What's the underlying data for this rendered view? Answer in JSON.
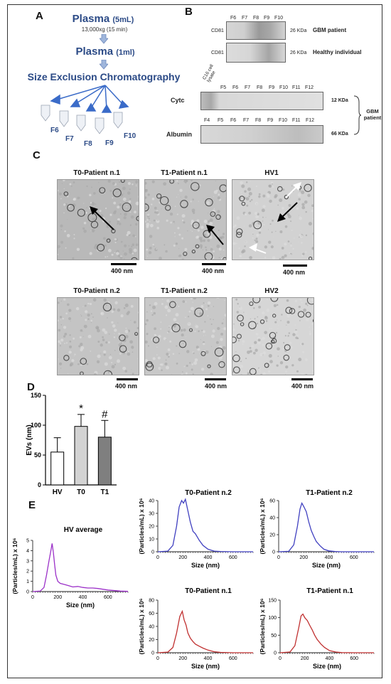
{
  "panels": {
    "a": "A",
    "b": "B",
    "c": "C",
    "d": "D",
    "e": "E"
  },
  "flow": {
    "plasma5_main": "Plasma",
    "plasma5_sub": "(5mL)",
    "spin": "13,000xg (15 min)",
    "plasma1_main": "Plasma",
    "plasma1_sub": "(1ml)",
    "sec": "Size Exclusion Chromatography",
    "fractions": [
      "F6",
      "F7",
      "F8",
      "F9",
      "F10"
    ]
  },
  "blot": {
    "cd81_lanes": [
      "F6",
      "F7",
      "F8",
      "F9",
      "F10"
    ],
    "cd81_row": "CD81",
    "kda26": "26 KDa",
    "gbm": "GBM patient",
    "healthy": "Healthy individual",
    "cytc_lanes": [
      "C16 cell lysate",
      "F5",
      "F6",
      "F7",
      "F8",
      "F9",
      "F10",
      "F11",
      "F12"
    ],
    "cytc": "Cytc",
    "kda12": "12 KDa",
    "alb_lanes": [
      "F4",
      "F5",
      "F6",
      "F7",
      "F8",
      "F9",
      "F10",
      "F11",
      "F12"
    ],
    "albumin": "Albumin",
    "kda66": "66 KDa",
    "gbm_side": "GBM patient"
  },
  "micro": {
    "titles": [
      "T0-Patient n.1",
      "T1-Patient n.1",
      "HV1",
      "T0-Patient n.2",
      "T1-Patient n.2",
      "HV2"
    ],
    "scale": "400 nm"
  },
  "chart_data": [
    {
      "type": "bar",
      "categories": [
        "HV",
        "T0",
        "T1"
      ],
      "values": [
        55,
        98,
        80
      ],
      "errors": [
        24,
        20,
        28
      ],
      "ylabel": "EVs (nm)",
      "ylim": [
        0,
        150
      ],
      "yticks": [
        0,
        50,
        100,
        150
      ],
      "annotations": {
        "T0": "*",
        "T1": "#"
      },
      "colors": [
        "#ffffff",
        "#d3d3d3",
        "#7f7f7f"
      ]
    },
    {
      "type": "line",
      "title": "HV average",
      "color": "#9b30c8",
      "xlabel": "Size (nm)",
      "ylabel": "(Particles/mL) x 10⁶",
      "xlim": [
        0,
        760
      ],
      "ylim": [
        0,
        5
      ],
      "xticks": [
        0,
        200,
        400,
        600
      ],
      "yticks": [
        0,
        1,
        2,
        3,
        4,
        5
      ],
      "x": [
        0,
        60,
        90,
        110,
        130,
        145,
        155,
        165,
        175,
        185,
        200,
        220,
        250,
        280,
        320,
        360,
        400,
        440,
        480,
        520,
        600,
        700,
        760
      ],
      "y": [
        0,
        0.05,
        0.4,
        1.6,
        3.0,
        4.0,
        4.7,
        3.8,
        2.6,
        1.6,
        1.0,
        0.8,
        0.7,
        0.6,
        0.45,
        0.5,
        0.4,
        0.35,
        0.35,
        0.3,
        0.15,
        0.05,
        0.02
      ]
    },
    {
      "type": "line",
      "title": "T0-Patient n.2",
      "color": "#4040c0",
      "xlabel": "Size (nm)",
      "ylabel": "(Particles/mL) x 10⁶",
      "xlim": [
        0,
        760
      ],
      "ylim": [
        0,
        40
      ],
      "xticks": [
        0,
        200,
        400,
        600
      ],
      "yticks": [
        0,
        10,
        20,
        30,
        40
      ],
      "x": [
        0,
        80,
        120,
        150,
        170,
        190,
        205,
        220,
        240,
        260,
        280,
        300,
        330,
        360,
        400,
        450,
        500,
        600,
        700,
        760
      ],
      "y": [
        0,
        0.5,
        5,
        20,
        35,
        40,
        38,
        41,
        32,
        23,
        16,
        14,
        9,
        5,
        2,
        0.5,
        0.2,
        0,
        0,
        0
      ]
    },
    {
      "type": "line",
      "title": "T1-Patient n.2",
      "color": "#4040c0",
      "xlabel": "Size (nm)",
      "ylabel": "(Particles/mL) x 10⁶",
      "xlim": [
        0,
        760
      ],
      "ylim": [
        0,
        60
      ],
      "xticks": [
        0,
        200,
        400,
        600
      ],
      "yticks": [
        0,
        20,
        40,
        60
      ],
      "x": [
        0,
        80,
        120,
        150,
        170,
        185,
        200,
        220,
        240,
        260,
        280,
        300,
        330,
        360,
        400,
        450,
        500,
        600,
        700,
        760
      ],
      "y": [
        0,
        0.5,
        8,
        30,
        50,
        57,
        53,
        47,
        35,
        25,
        18,
        12,
        7,
        3,
        1,
        0.3,
        0,
        0,
        0,
        0
      ]
    },
    {
      "type": "line",
      "title": "T0-Patient n.1",
      "color": "#c03030",
      "xlabel": "Size (nm)",
      "ylabel": "(Particles/mL) x 10⁶",
      "xlim": [
        0,
        760
      ],
      "ylim": [
        0,
        80
      ],
      "xticks": [
        0,
        200,
        400,
        600
      ],
      "yticks": [
        0,
        20,
        40,
        60,
        80
      ],
      "x": [
        0,
        80,
        120,
        150,
        175,
        195,
        210,
        225,
        240,
        260,
        280,
        300,
        330,
        360,
        400,
        450,
        500,
        600,
        700,
        760
      ],
      "y": [
        0,
        1,
        8,
        30,
        55,
        63,
        50,
        42,
        30,
        22,
        17,
        13,
        10,
        7,
        4,
        1.5,
        0.5,
        0,
        0,
        0
      ]
    },
    {
      "type": "line",
      "title": "T1-Patient n.1",
      "color": "#c03030",
      "xlabel": "Size (nm)",
      "ylabel": "(Particles/mL) x 10⁶",
      "xlim": [
        0,
        760
      ],
      "ylim": [
        0,
        150
      ],
      "xticks": [
        0,
        200,
        400,
        600
      ],
      "yticks": [
        0,
        50,
        100,
        150
      ],
      "x": [
        0,
        80,
        120,
        150,
        170,
        185,
        200,
        220,
        240,
        260,
        280,
        300,
        330,
        360,
        400,
        450,
        500,
        600,
        700,
        760
      ],
      "y": [
        0,
        2,
        20,
        70,
        105,
        110,
        100,
        92,
        78,
        65,
        50,
        38,
        25,
        15,
        6,
        2,
        0.5,
        0,
        0,
        0
      ]
    }
  ]
}
